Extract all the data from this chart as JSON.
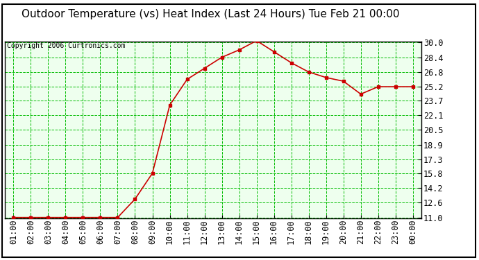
{
  "title": "Outdoor Temperature (vs) Heat Index (Last 24 Hours) Tue Feb 21 00:00",
  "copyright": "Copyright 2006 Curtronics.com",
  "x_labels": [
    "01:00",
    "02:00",
    "03:00",
    "04:00",
    "05:00",
    "06:00",
    "07:00",
    "08:00",
    "09:00",
    "10:00",
    "11:00",
    "12:00",
    "13:00",
    "14:00",
    "15:00",
    "16:00",
    "17:00",
    "18:00",
    "19:00",
    "20:00",
    "21:00",
    "22:00",
    "23:00",
    "00:00"
  ],
  "y_values": [
    11.0,
    11.0,
    11.0,
    11.0,
    11.0,
    11.0,
    11.0,
    13.0,
    15.8,
    23.2,
    26.0,
    27.2,
    28.4,
    29.2,
    30.2,
    29.0,
    27.8,
    26.8,
    26.2,
    25.8,
    24.4,
    25.2,
    25.2,
    25.2
  ],
  "y_ticks": [
    11.0,
    12.6,
    14.2,
    15.8,
    17.3,
    18.9,
    20.5,
    22.1,
    23.7,
    25.2,
    26.8,
    28.4,
    30.0
  ],
  "y_min": 11.0,
  "y_max": 30.0,
  "line_color": "#cc0000",
  "marker_color": "#cc0000",
  "grid_color": "#00bb00",
  "bg_color": "#ffffff",
  "plot_bg_color": "#eeffee",
  "title_fontsize": 11,
  "copyright_fontsize": 7,
  "tick_fontsize": 8.5
}
